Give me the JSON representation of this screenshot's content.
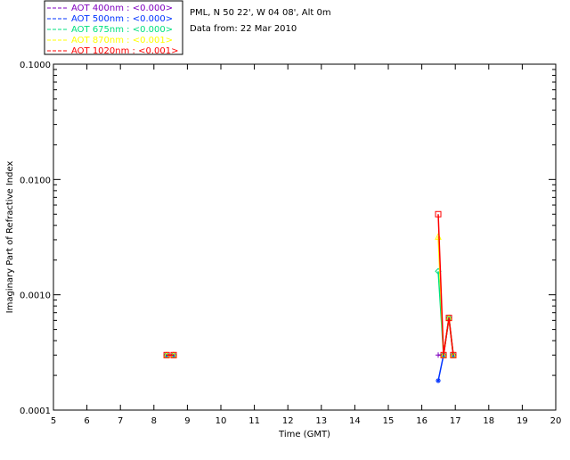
{
  "header": {
    "site": "PML, N 50 22', W 04 08', Alt 0m",
    "date": "Data from: 22 Mar 2010"
  },
  "chart_data": {
    "type": "line",
    "xlabel": "Time (GMT)",
    "ylabel": "Imaginary Part of Refractive Index",
    "xlim": [
      5,
      20
    ],
    "ylim": [
      0.0001,
      0.1
    ],
    "yscale": "log",
    "xticks": [
      "5",
      "6",
      "7",
      "8",
      "9",
      "10",
      "11",
      "12",
      "13",
      "14",
      "15",
      "16",
      "17",
      "18",
      "19",
      "20"
    ],
    "yticks": [
      {
        "v": 0.1,
        "label": "0.1000"
      },
      {
        "v": 0.01,
        "label": "0.0100"
      },
      {
        "v": 0.001,
        "label": "0.0010"
      },
      {
        "v": 0.0001,
        "label": "0.0001"
      }
    ],
    "legend_position": "top-left-outside",
    "series": [
      {
        "name": "AOT  400nm : <0.000>",
        "color": "#7f00bf",
        "marker": "plus",
        "x": [
          8.38,
          8.59,
          16.49,
          16.65,
          16.81,
          16.94
        ],
        "y": [
          0.0003,
          0.0003,
          0.0003,
          0.0003,
          0.00063,
          0.0003
        ]
      },
      {
        "name": "AOT  500nm : <0.000>",
        "color": "#0033ff",
        "marker": "star",
        "x": [
          8.38,
          8.59,
          16.49,
          16.65,
          16.81,
          16.94
        ],
        "y": [
          0.0003,
          0.0003,
          0.00018,
          0.0003,
          0.00063,
          0.0003
        ]
      },
      {
        "name": "AOT  675nm : <0.000>",
        "color": "#00e080",
        "marker": "diamond",
        "x": [
          8.38,
          8.59,
          16.49,
          16.65,
          16.81,
          16.94
        ],
        "y": [
          0.0003,
          0.0003,
          0.0016,
          0.0003,
          0.00063,
          0.0003
        ]
      },
      {
        "name": "AOT  870nm : <0.001>",
        "color": "#ffff00",
        "marker": "triangle",
        "x": [
          8.38,
          8.59,
          16.49,
          16.65,
          16.81,
          16.94
        ],
        "y": [
          0.0003,
          0.0003,
          0.0032,
          0.0003,
          0.00063,
          0.0003
        ]
      },
      {
        "name": "AOT 1020nm : <0.001>",
        "color": "#ff0000",
        "marker": "square",
        "x": [
          8.38,
          8.59,
          16.49,
          16.65,
          16.81,
          16.94
        ],
        "y": [
          0.0003,
          0.0003,
          0.005,
          0.0003,
          0.00063,
          0.0003
        ]
      }
    ]
  }
}
